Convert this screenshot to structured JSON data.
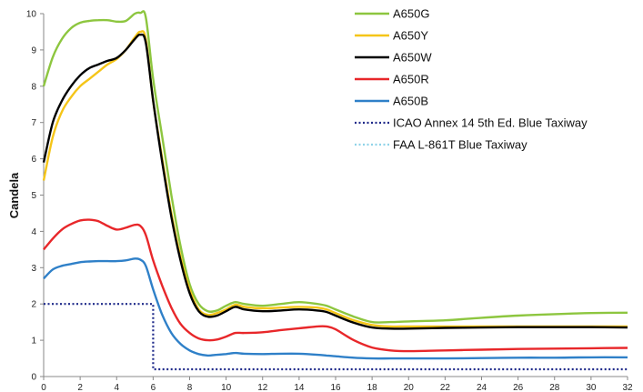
{
  "chart_data": {
    "type": "line",
    "title": "",
    "xlabel": "",
    "ylabel": "Candela",
    "xlim": [
      0,
      32
    ],
    "ylim": [
      0,
      10
    ],
    "xticks": [
      0,
      2,
      4,
      6,
      8,
      10,
      12,
      14,
      16,
      18,
      20,
      22,
      24,
      26,
      28,
      30,
      32
    ],
    "yticks": [
      0,
      1,
      2,
      3,
      4,
      5,
      6,
      7,
      8,
      9,
      10
    ],
    "grid": false,
    "legend_position": "top-right",
    "series": [
      {
        "name": "A650G",
        "color": "#8dc63f",
        "style": "solid",
        "x": [
          0,
          0.5,
          1,
          1.5,
          2,
          2.5,
          3,
          3.5,
          4,
          4.5,
          5,
          5.3,
          5.6,
          6,
          6.5,
          7,
          7.5,
          8,
          8.5,
          9,
          9.5,
          10,
          10.5,
          11,
          12,
          13,
          14,
          15,
          15.5,
          16,
          17,
          18,
          19,
          20,
          22,
          24,
          26,
          28,
          30,
          32
        ],
        "y": [
          8.0,
          8.8,
          9.3,
          9.6,
          9.75,
          9.8,
          9.82,
          9.82,
          9.78,
          9.8,
          10.0,
          10.02,
          9.9,
          8.2,
          6.6,
          5.0,
          3.6,
          2.55,
          2.0,
          1.8,
          1.82,
          1.95,
          2.05,
          2.0,
          1.95,
          2.0,
          2.05,
          2.0,
          1.95,
          1.85,
          1.65,
          1.5,
          1.5,
          1.52,
          1.55,
          1.62,
          1.68,
          1.72,
          1.75,
          1.76
        ]
      },
      {
        "name": "A650Y",
        "color": "#f5c518",
        "style": "solid",
        "x": [
          0,
          0.5,
          1,
          1.5,
          2,
          2.5,
          3,
          3.5,
          4,
          4.5,
          5,
          5.3,
          5.6,
          6,
          6.5,
          7,
          7.5,
          8,
          8.5,
          9,
          9.5,
          10,
          10.5,
          11,
          12,
          13,
          14,
          15,
          15.5,
          16,
          17,
          18,
          19,
          20,
          22,
          24,
          26,
          28,
          30,
          32
        ],
        "y": [
          5.4,
          6.6,
          7.3,
          7.7,
          8.0,
          8.2,
          8.4,
          8.6,
          8.75,
          9.0,
          9.35,
          9.5,
          9.3,
          7.6,
          6.0,
          4.5,
          3.3,
          2.4,
          1.85,
          1.7,
          1.75,
          1.85,
          1.98,
          1.92,
          1.88,
          1.9,
          1.92,
          1.9,
          1.85,
          1.75,
          1.55,
          1.42,
          1.38,
          1.38,
          1.38,
          1.38,
          1.38,
          1.38,
          1.38,
          1.38
        ]
      },
      {
        "name": "A650W",
        "color": "#000000",
        "style": "solid",
        "x": [
          0,
          0.5,
          1,
          1.5,
          2,
          2.5,
          3,
          3.5,
          4,
          4.5,
          5,
          5.3,
          5.6,
          6,
          6.5,
          7,
          7.5,
          8,
          8.5,
          9,
          9.5,
          10,
          10.5,
          11,
          12,
          13,
          14,
          15,
          15.5,
          16,
          17,
          18,
          19,
          20,
          22,
          24,
          26,
          28,
          30,
          32
        ],
        "y": [
          5.9,
          7.0,
          7.6,
          8.0,
          8.3,
          8.5,
          8.6,
          8.7,
          8.78,
          9.0,
          9.3,
          9.42,
          9.2,
          7.6,
          5.9,
          4.4,
          3.2,
          2.3,
          1.8,
          1.65,
          1.68,
          1.8,
          1.92,
          1.85,
          1.8,
          1.82,
          1.85,
          1.82,
          1.78,
          1.68,
          1.48,
          1.35,
          1.32,
          1.32,
          1.34,
          1.35,
          1.36,
          1.36,
          1.36,
          1.35
        ]
      },
      {
        "name": "A650R",
        "color": "#e8272a",
        "style": "solid",
        "x": [
          0,
          0.5,
          1,
          1.5,
          2,
          2.5,
          3,
          3.5,
          4,
          4.5,
          5,
          5.3,
          5.6,
          6,
          6.5,
          7,
          7.5,
          8,
          8.5,
          9,
          9.5,
          10,
          10.5,
          11,
          12,
          13,
          14,
          15,
          15.5,
          16,
          17,
          18,
          19,
          20,
          22,
          24,
          26,
          28,
          30,
          32
        ],
        "y": [
          3.5,
          3.8,
          4.05,
          4.2,
          4.3,
          4.32,
          4.28,
          4.15,
          4.05,
          4.1,
          4.18,
          4.15,
          3.9,
          3.2,
          2.5,
          1.9,
          1.45,
          1.2,
          1.05,
          1.0,
          1.02,
          1.1,
          1.2,
          1.2,
          1.22,
          1.28,
          1.33,
          1.38,
          1.38,
          1.3,
          1.0,
          0.8,
          0.72,
          0.7,
          0.72,
          0.74,
          0.76,
          0.77,
          0.78,
          0.79
        ]
      },
      {
        "name": "A650B",
        "color": "#2f80c8",
        "style": "solid",
        "x": [
          0,
          0.5,
          1,
          1.5,
          2,
          2.5,
          3,
          3.5,
          4,
          4.5,
          5,
          5.3,
          5.6,
          6,
          6.5,
          7,
          7.5,
          8,
          8.5,
          9,
          9.5,
          10,
          10.5,
          11,
          12,
          13,
          14,
          15,
          15.5,
          16,
          17,
          18,
          19,
          20,
          22,
          24,
          26,
          28,
          30,
          32
        ],
        "y": [
          2.7,
          2.95,
          3.05,
          3.1,
          3.15,
          3.17,
          3.18,
          3.18,
          3.18,
          3.2,
          3.25,
          3.22,
          3.05,
          2.4,
          1.7,
          1.2,
          0.9,
          0.72,
          0.62,
          0.58,
          0.6,
          0.62,
          0.65,
          0.63,
          0.62,
          0.63,
          0.63,
          0.6,
          0.58,
          0.56,
          0.52,
          0.5,
          0.5,
          0.5,
          0.5,
          0.51,
          0.52,
          0.52,
          0.53,
          0.53
        ]
      },
      {
        "name": "ICAO Annex 14 5th Ed. Blue Taxiway",
        "color": "#1f2a8a",
        "style": "dotted",
        "x": [
          0,
          6,
          6,
          32
        ],
        "y": [
          2.0,
          2.0,
          0.2,
          0.2
        ]
      },
      {
        "name": "FAA L-861T Blue Taxiway",
        "color": "#8fd3e8",
        "style": "dotted",
        "x": [],
        "y": []
      }
    ]
  }
}
